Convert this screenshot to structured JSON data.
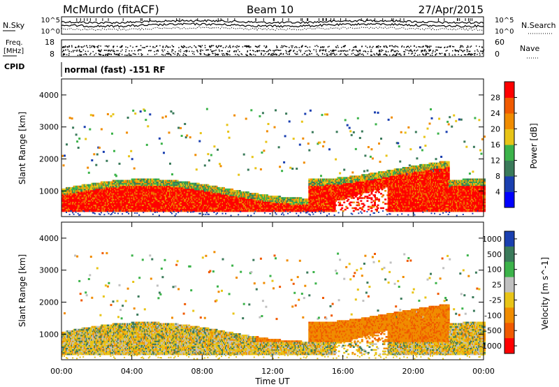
{
  "header": {
    "station": "McMurdo (fitACF)",
    "beam": "Beam 10",
    "date": "27/Apr/2015"
  },
  "noise_panel": {
    "left_label": "N.Sky",
    "right_label": "N.Search",
    "left_top_tick": "10^5",
    "left_bottom_tick": "10^0",
    "right_top_tick": "10^5",
    "right_bottom_tick": "10^0"
  },
  "freq_panel": {
    "left_label_line1": "Freq.",
    "left_label_line2": "[MHz]",
    "left_top_tick": "18",
    "left_bottom_tick": "8",
    "right_label": "Nave",
    "right_top_tick": "60",
    "right_bottom_tick": "0"
  },
  "cpid_panel": {
    "label": "CPID",
    "value": "normal (fast) -151 RF"
  },
  "chart_data": [
    {
      "type": "heatmap",
      "name": "Power",
      "ylabel": "Slant Range [km]",
      "ylim": [
        200,
        4500
      ],
      "yticks": [
        "1000",
        "2000",
        "3000",
        "4000"
      ],
      "xlabel": "Time UT",
      "xlim_hours": [
        0,
        24
      ],
      "xticks": [
        "00:00",
        "04:00",
        "08:00",
        "12:00",
        "16:00",
        "20:00",
        "00:00"
      ],
      "colorbar": {
        "label": "Power [dB]",
        "tick_labels": [
          "4",
          "8",
          "12",
          "16",
          "20",
          "24",
          "28"
        ],
        "colors": [
          "#0000ff",
          "#1a3fb0",
          "#3a7a5a",
          "#3cb34a",
          "#e8c417",
          "#f08c00",
          "#f05a00",
          "#ff0000"
        ]
      }
    },
    {
      "type": "heatmap",
      "name": "Velocity",
      "ylabel": "Slant Range [km]",
      "ylim": [
        200,
        4500
      ],
      "yticks": [
        "1000",
        "2000",
        "3000",
        "4000"
      ],
      "xlabel": "Time UT",
      "xlim_hours": [
        0,
        24
      ],
      "xticks": [
        "00:00",
        "04:00",
        "08:00",
        "12:00",
        "16:00",
        "20:00",
        "00:00"
      ],
      "colorbar": {
        "label": "Velocity [m s^-1]",
        "tick_labels": [
          "1000",
          "500",
          "100",
          "25",
          "-25",
          "-100",
          "-500",
          "-1000"
        ],
        "colors": [
          "#1a3fb0",
          "#3a7a5a",
          "#3cb34a",
          "#c0c0c0",
          "#e8c417",
          "#f08c00",
          "#f05a00",
          "#ff0000"
        ]
      }
    }
  ]
}
